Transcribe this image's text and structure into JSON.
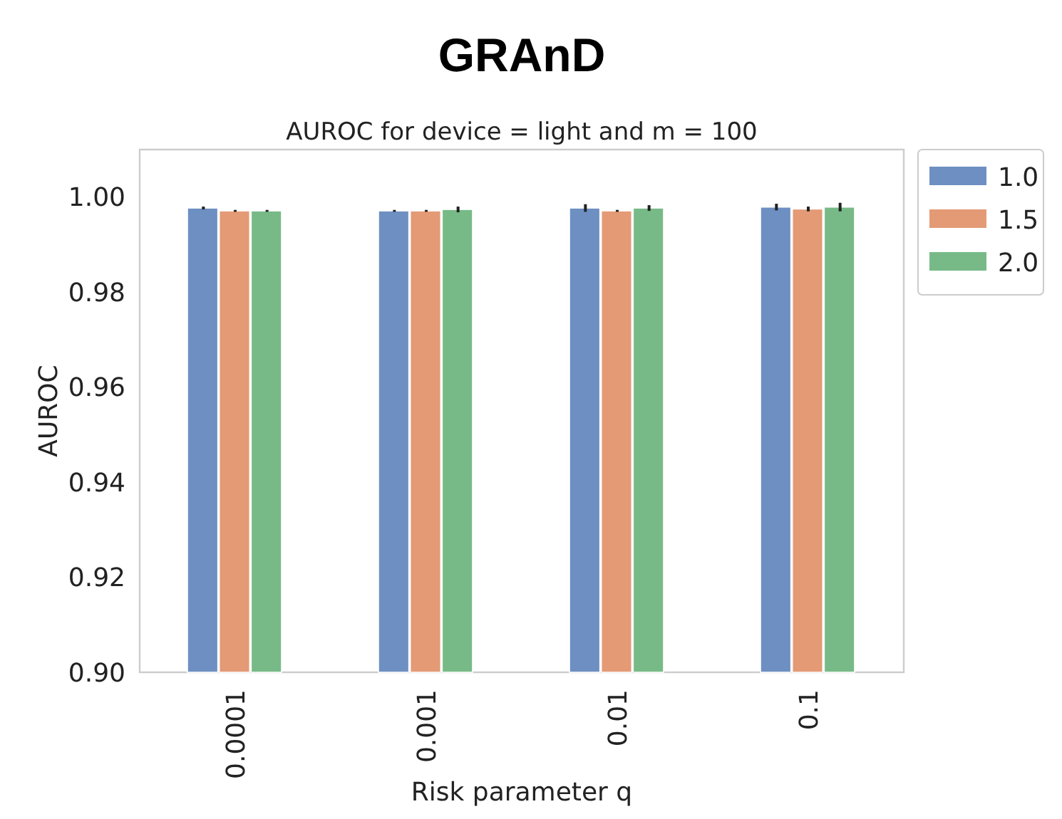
{
  "chart_data": {
    "type": "bar",
    "title": "GRAnD",
    "subtitle": "AUROC for device = light and  m = 100",
    "xlabel": "Risk parameter q",
    "ylabel": "AUROC",
    "categories": [
      "0.0001",
      "0.001",
      "0.01",
      "0.1"
    ],
    "series": [
      {
        "name": "1.0",
        "color": "#6e8fc2",
        "values": [
          0.9977,
          0.9971,
          0.9977,
          0.9979
        ],
        "errors": [
          0.0003,
          0.0002,
          0.0008,
          0.0007
        ]
      },
      {
        "name": "1.5",
        "color": "#e39a75",
        "values": [
          0.9971,
          0.9971,
          0.9971,
          0.9975
        ],
        "errors": [
          0.0002,
          0.0002,
          0.0002,
          0.0005
        ]
      },
      {
        "name": "2.0",
        "color": "#77ba87",
        "values": [
          0.9971,
          0.9974,
          0.9977,
          0.9979
        ],
        "errors": [
          0.0002,
          0.0006,
          0.0006,
          0.0009
        ]
      }
    ],
    "ylim": [
      0.9,
      1.01
    ],
    "yticks": [
      {
        "value": 0.9,
        "label": "0.90"
      },
      {
        "value": 0.92,
        "label": "0.92"
      },
      {
        "value": 0.94,
        "label": "0.94"
      },
      {
        "value": 0.96,
        "label": "0.96"
      },
      {
        "value": 0.98,
        "label": "0.98"
      },
      {
        "value": 1.0,
        "label": "1.00"
      }
    ],
    "legend": "right",
    "grid": false
  }
}
